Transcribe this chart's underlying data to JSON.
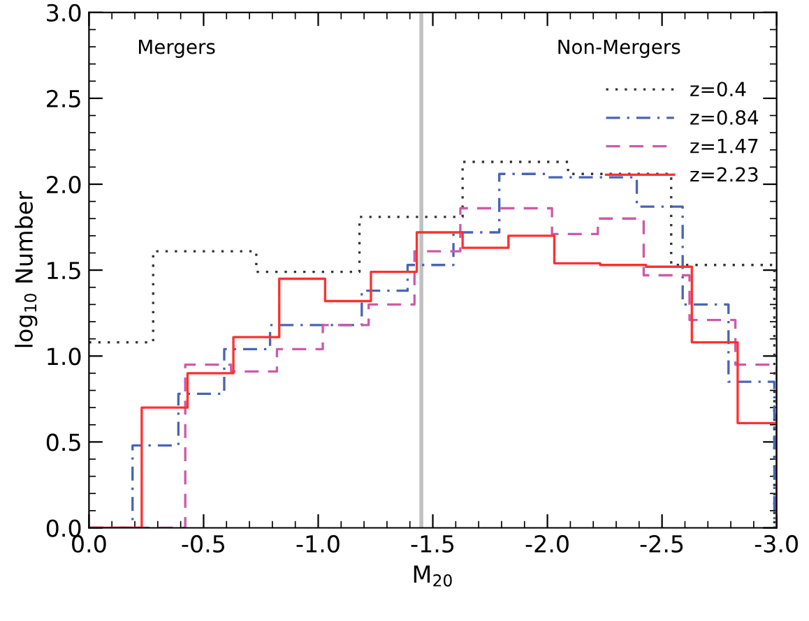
{
  "chart_data": {
    "type": "step",
    "xlabel": "M$_{20}$",
    "ylabel": "log$_{10}$ Number",
    "xlim": [
      0,
      -3.0
    ],
    "ylim": [
      0,
      3.0
    ],
    "xticks": [
      {
        "value": 0,
        "label": "0.0"
      },
      {
        "value": -0.5,
        "label": "-0.5"
      },
      {
        "value": -1.0,
        "label": "-1.0"
      },
      {
        "value": -1.5,
        "label": "-1.5"
      },
      {
        "value": -2.0,
        "label": "-2.0"
      },
      {
        "value": -2.5,
        "label": "-2.5"
      },
      {
        "value": -3.0,
        "label": "-3.0"
      }
    ],
    "yticks": [
      {
        "value": 0,
        "label": "0.0"
      },
      0.5,
      {
        "value": 1,
        "label": "1.0"
      },
      1.5,
      {
        "value": 2,
        "label": "2.0"
      },
      2.5,
      {
        "value": 3,
        "label": "3.0"
      }
    ],
    "annotations": [
      "Mergers",
      "Non-Mergers"
    ],
    "ref_lines": [
      {
        "axis": "x",
        "value": -1.45,
        "color": "#c0c0c0"
      }
    ],
    "legend": "top right",
    "grid": false,
    "series": [
      {
        "name": "z=0.4",
        "color": "#333333",
        "line_style": "dotted",
        "x": [
          0,
          -0.28,
          -0.73,
          -1.18,
          -1.63,
          -2.09,
          -2.54,
          -2.99
        ],
        "values": [
          1.08,
          1.61,
          1.49,
          1.81,
          2.13,
          2.06,
          1.53,
          0
        ]
      },
      {
        "name": "z=0.84",
        "color": "#4a64b4",
        "line_style": "dashdot",
        "x": [
          0,
          -0.19,
          -0.39,
          -0.59,
          -0.79,
          -0.99,
          -1.19,
          -1.39,
          -1.59,
          -1.79,
          -1.99,
          -2.19,
          -2.39,
          -2.59,
          -2.79,
          -2.99
        ],
        "values": [
          0,
          0.48,
          0.78,
          1.04,
          1.18,
          1.18,
          1.38,
          1.53,
          1.72,
          2.06,
          2.04,
          2.04,
          1.87,
          1.3,
          0.85,
          0
        ]
      },
      {
        "name": "z=1.47",
        "color": "#cc5aaa",
        "line_style": "dashed",
        "x": [
          0,
          -0.42,
          -0.62,
          -0.82,
          -1.02,
          -1.22,
          -1.42,
          -1.62,
          -1.82,
          -2.02,
          -2.22,
          -2.42,
          -2.62,
          -2.82,
          -3.0
        ],
        "values": [
          0,
          0.95,
          0.91,
          1.04,
          1.18,
          1.3,
          1.61,
          1.86,
          1.86,
          1.71,
          1.8,
          1.47,
          1.21,
          0.95,
          0
        ]
      },
      {
        "name": "z=2.23",
        "color": "#ff3030",
        "line_style": "solid",
        "x": [
          0,
          -0.23,
          -0.43,
          -0.63,
          -0.83,
          -1.03,
          -1.23,
          -1.43,
          -1.63,
          -1.83,
          -2.03,
          -2.23,
          -2.43,
          -2.63,
          -2.83,
          -3.0
        ],
        "values": [
          0,
          0.7,
          0.9,
          1.11,
          1.45,
          1.32,
          1.49,
          1.72,
          1.63,
          1.7,
          1.54,
          1.53,
          1.52,
          1.08,
          0.61,
          0
        ]
      }
    ]
  }
}
